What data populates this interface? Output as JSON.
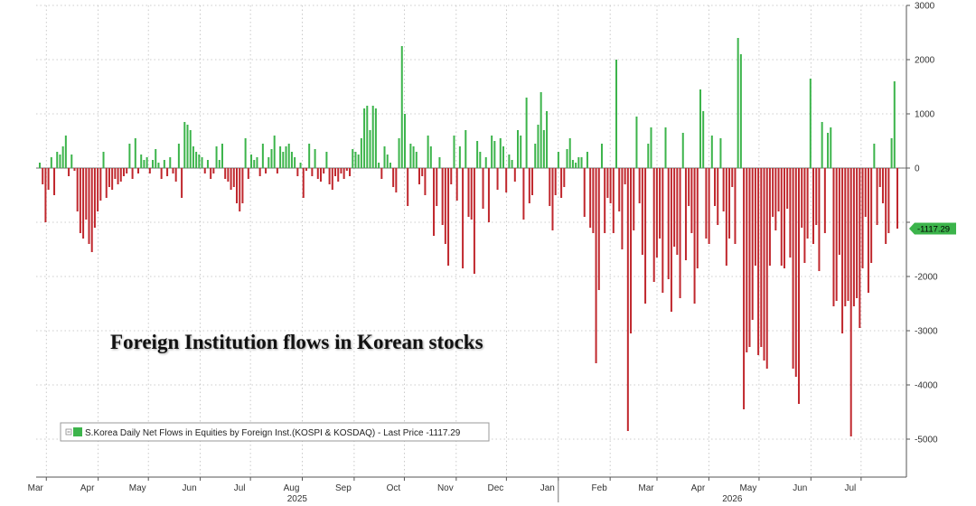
{
  "chart_data": {
    "type": "bar",
    "title": "Foreign Institution flows in Korean stocks",
    "legend": {
      "placement": "bottom-left",
      "text": "S.Korea Daily Net Flows in Equities by Foreign Inst.(KOSPI & KOSDAQ) - Last Price -1117.29"
    },
    "last_price_label": "-1117.29",
    "ylim": [
      -5700,
      3000
    ],
    "y_ticks": [
      3000,
      2000,
      1000,
      0,
      -1000,
      -2000,
      -3000,
      -4000,
      -5000
    ],
    "y_tick_labels": [
      "3000",
      "2000",
      "1000",
      "0",
      "",
      "-2000",
      "-3000",
      "-4000",
      "-5000"
    ],
    "grid": true,
    "colors": {
      "positive": "#3cb44b",
      "negative": "#c0272d",
      "last_price_box": "#3cb44b"
    },
    "month_labels": [
      "Mar",
      "Apr",
      "May",
      "Jun",
      "Jul",
      "Aug",
      "Sep",
      "Oct",
      "Nov",
      "Dec",
      "Jan",
      "Feb",
      "Mar",
      "Apr",
      "May",
      "Jun",
      "Jul"
    ],
    "year_labels": [
      "2025",
      "2026"
    ],
    "x_start": "2025-02-24",
    "x_end": "2026-07-27",
    "series": [
      {
        "values": [
          100,
          -300,
          -1000,
          -400,
          200,
          -500,
          300,
          250,
          400,
          600,
          -150,
          250,
          -50,
          -800,
          -1200,
          -1300,
          -950,
          -1400,
          -1550,
          -1100,
          -800,
          -600,
          300,
          -550,
          -350,
          -400,
          -200,
          -300,
          -250,
          -150,
          -100,
          450,
          -200,
          550,
          -100,
          250,
          150,
          200,
          -100,
          150,
          350,
          100,
          -200,
          150,
          -150,
          200,
          -100,
          -250,
          450,
          -550,
          850,
          800,
          700,
          400,
          300,
          250,
          200,
          -100,
          150,
          -200,
          -100,
          400,
          150,
          450,
          -200,
          -250,
          -400,
          -350,
          -650,
          -800,
          -650,
          550,
          -200,
          250,
          150,
          200,
          -150,
          450,
          -100,
          200,
          350,
          600,
          -100,
          400,
          300,
          400,
          450,
          300,
          200,
          -150,
          100,
          -550,
          -50,
          450,
          -150,
          350,
          -200,
          -250,
          -100,
          300,
          -300,
          -400,
          -150,
          -250,
          -100,
          -200,
          -50,
          -150,
          350,
          300,
          250,
          550,
          1100,
          1150,
          700,
          1150,
          1100,
          100,
          -200,
          400,
          250,
          100,
          -350,
          -450,
          550,
          2250,
          1000,
          -700,
          450,
          400,
          300,
          -300,
          -150,
          -500,
          600,
          400,
          -1250,
          -700,
          200,
          -1050,
          -1400,
          -1800,
          -300,
          600,
          -600,
          400,
          -1850,
          700,
          -900,
          -950,
          -1950,
          500,
          300,
          -750,
          200,
          -1000,
          600,
          500,
          -400,
          550,
          400,
          -450,
          250,
          150,
          -250,
          700,
          600,
          -950,
          1300,
          -650,
          -500,
          450,
          800,
          1400,
          700,
          1050,
          -700,
          -1150,
          -500,
          300,
          -550,
          -350,
          350,
          550,
          150,
          100,
          200,
          200,
          -900,
          300,
          -1100,
          -1200,
          -3600,
          -2250,
          450,
          -1200,
          -550,
          -650,
          -1200,
          2000,
          -800,
          -1500,
          -300,
          -4850,
          -3050,
          -1150,
          950,
          -650,
          -1600,
          -2500,
          450,
          750,
          -2100,
          -1650,
          -1300,
          -2300,
          750,
          -2050,
          -2650,
          -1450,
          -1600,
          -2400,
          650,
          -1700,
          -700,
          -1200,
          -2500,
          -1850,
          1450,
          1050,
          -1300,
          -1400,
          600,
          -700,
          -1050,
          550,
          -800,
          -1800,
          -1300,
          -350,
          -1400,
          2400,
          2100,
          -4450,
          -3400,
          -3300,
          -2800,
          -1800,
          -3450,
          -3300,
          -3550,
          -3700,
          -1800,
          -900,
          -1150,
          -800,
          -1800,
          -1850,
          -750,
          -1650,
          -3700,
          -3850,
          -4350,
          -1100,
          -1750,
          -1300,
          1650,
          -1400,
          -1050,
          -1900,
          850,
          -1200,
          650,
          750,
          -2550,
          -2450,
          -1600,
          -3050,
          -2550,
          -2450,
          -4950,
          -2550,
          -2400,
          -2950,
          -1850,
          -900,
          -2300,
          -1750,
          450,
          -1050,
          -350,
          -650,
          -1400,
          -1200,
          550,
          1600,
          -1117
        ]
      }
    ]
  }
}
